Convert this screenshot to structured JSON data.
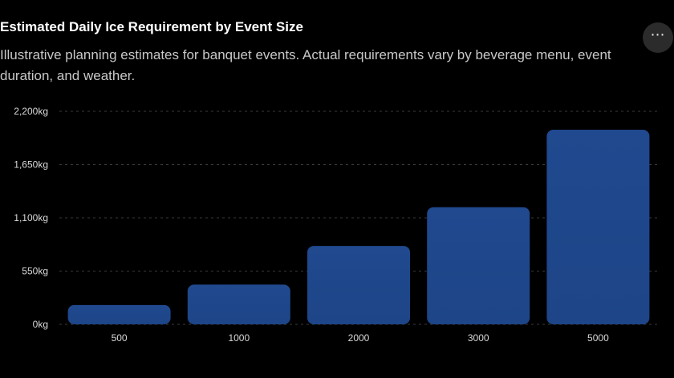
{
  "header": {
    "title": "Estimated Daily Ice Requirement by Event Size",
    "subtitle": "Illustrative planning estimates for banquet events. Actual requirements vary by beverage menu, event duration, and weather.",
    "more_icon": "more-horizontal-icon",
    "more_glyph": "⋯"
  },
  "colors": {
    "background": "#000000",
    "bar_top": "#20498f",
    "bar_bottom": "#1d4587",
    "grid": "#3a3a3a",
    "tick_text": "#d9d9d9"
  },
  "chart_data": {
    "type": "bar",
    "title": "Estimated Daily Ice Requirement by Event Size",
    "xlabel": "",
    "ylabel": "",
    "categories": [
      "500",
      "1000",
      "2000",
      "3000",
      "5000"
    ],
    "values": [
      200,
      410,
      810,
      1210,
      2010
    ],
    "y_unit": "kg",
    "ylim": [
      0,
      2200
    ],
    "y_ticks": [
      0,
      550,
      1100,
      1650,
      2200
    ],
    "y_tick_labels": [
      "0kg",
      "550kg",
      "1,100kg",
      "1,650kg",
      "2,200kg"
    ],
    "grid": true,
    "legend": "none"
  }
}
